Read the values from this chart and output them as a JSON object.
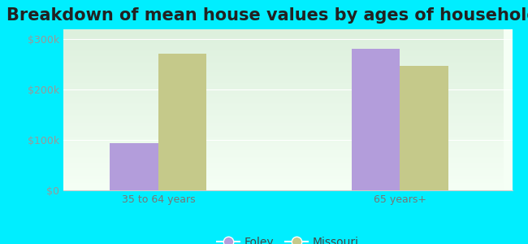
{
  "title": "Breakdown of mean house values by ages of householders",
  "categories": [
    "35 to 64 years",
    "65 years+"
  ],
  "foley_values": [
    93000,
    281000
  ],
  "missouri_values": [
    271000,
    247000
  ],
  "foley_color": "#b39ddb",
  "missouri_color": "#c5c98a",
  "background_color": "#00eeff",
  "plot_bg_top": "#ddf0dd",
  "plot_bg_bottom": "#f5fff5",
  "ylim": [
    0,
    320000
  ],
  "yticks": [
    0,
    100000,
    200000,
    300000
  ],
  "ytick_labels": [
    "$0",
    "$100k",
    "$200k",
    "$300k"
  ],
  "legend_labels": [
    "Foley",
    "Missouri"
  ],
  "bar_width": 0.28,
  "title_fontsize": 15,
  "tick_fontsize": 9,
  "legend_fontsize": 10
}
